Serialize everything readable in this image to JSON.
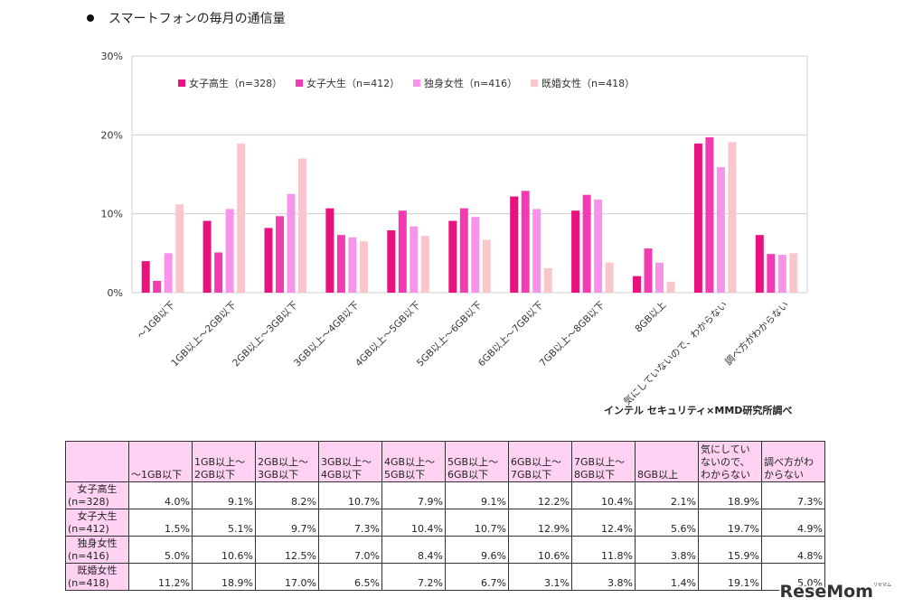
{
  "heading": "スマートフォンの毎月の通信量",
  "source_note": "インテル セキュリティ×MMD研究所調べ",
  "watermark": "ReseMom",
  "colors": {
    "s0": "#e8127f",
    "s1": "#f23bb2",
    "s2": "#f793ea",
    "s3": "#f9c6cc"
  },
  "chart_data": {
    "type": "bar",
    "categories": [
      "～1GB以下",
      "1GB以上～2GB以下",
      "2GB以上～3GB以下",
      "3GB以上～4GB以下",
      "4GB以上～5GB以下",
      "5GB以上～6GB以下",
      "6GB以上～7GB以下",
      "7GB以上～8GB以下",
      "8GB以上",
      "気にしていないので、わからない",
      "調べ方がわからない"
    ],
    "series": [
      {
        "name": "女子高生（n=328）",
        "values": [
          4.0,
          9.1,
          8.2,
          10.7,
          7.9,
          9.1,
          12.2,
          10.4,
          2.1,
          18.9,
          7.3
        ]
      },
      {
        "name": "女子大生（n=412）",
        "values": [
          1.5,
          5.1,
          9.7,
          7.3,
          10.4,
          10.7,
          12.9,
          12.4,
          5.6,
          19.7,
          4.9
        ]
      },
      {
        "name": "独身女性（n=416）",
        "values": [
          5.0,
          10.6,
          12.5,
          7.0,
          8.4,
          9.6,
          10.6,
          11.8,
          3.8,
          15.9,
          4.8
        ]
      },
      {
        "name": "既婚女性（n=418）",
        "values": [
          11.2,
          18.9,
          17.0,
          6.5,
          7.2,
          6.7,
          3.1,
          3.8,
          1.4,
          19.1,
          5.0
        ]
      }
    ],
    "yticks": [
      "0%",
      "10%",
      "20%",
      "30%"
    ],
    "ylim": [
      0,
      30
    ],
    "grid": true,
    "legend": "top-left"
  },
  "table": {
    "headers": [
      "",
      "～1GB以下",
      "1GB以上～2GB以下",
      "2GB以上～3GB以下",
      "3GB以上～4GB以下",
      "4GB以上～5GB以下",
      "5GB以上～6GB以下",
      "6GB以上～7GB以下",
      "7GB以上～8GB以下",
      "8GB以上",
      "気にしていないので、わからない",
      "調べ方がわからない"
    ],
    "rows": [
      {
        "label1": "女子高生",
        "label2": "(n=328)",
        "cells": [
          "4.0%",
          "9.1%",
          "8.2%",
          "10.7%",
          "7.9%",
          "9.1%",
          "12.2%",
          "10.4%",
          "2.1%",
          "18.9%",
          "7.3%"
        ]
      },
      {
        "label1": "女子大生",
        "label2": "(n=412)",
        "cells": [
          "1.5%",
          "5.1%",
          "9.7%",
          "7.3%",
          "10.4%",
          "10.7%",
          "12.9%",
          "12.4%",
          "5.6%",
          "19.7%",
          "4.9%"
        ]
      },
      {
        "label1": "独身女性",
        "label2": "(n=416)",
        "cells": [
          "5.0%",
          "10.6%",
          "12.5%",
          "7.0%",
          "8.4%",
          "9.6%",
          "10.6%",
          "11.8%",
          "3.8%",
          "15.9%",
          "4.8%"
        ]
      },
      {
        "label1": "既婚女性",
        "label2": "(n=418)",
        "cells": [
          "11.2%",
          "18.9%",
          "17.0%",
          "6.5%",
          "7.2%",
          "6.7%",
          "3.1%",
          "3.8%",
          "1.4%",
          "19.1%",
          "5.0%"
        ]
      }
    ]
  }
}
